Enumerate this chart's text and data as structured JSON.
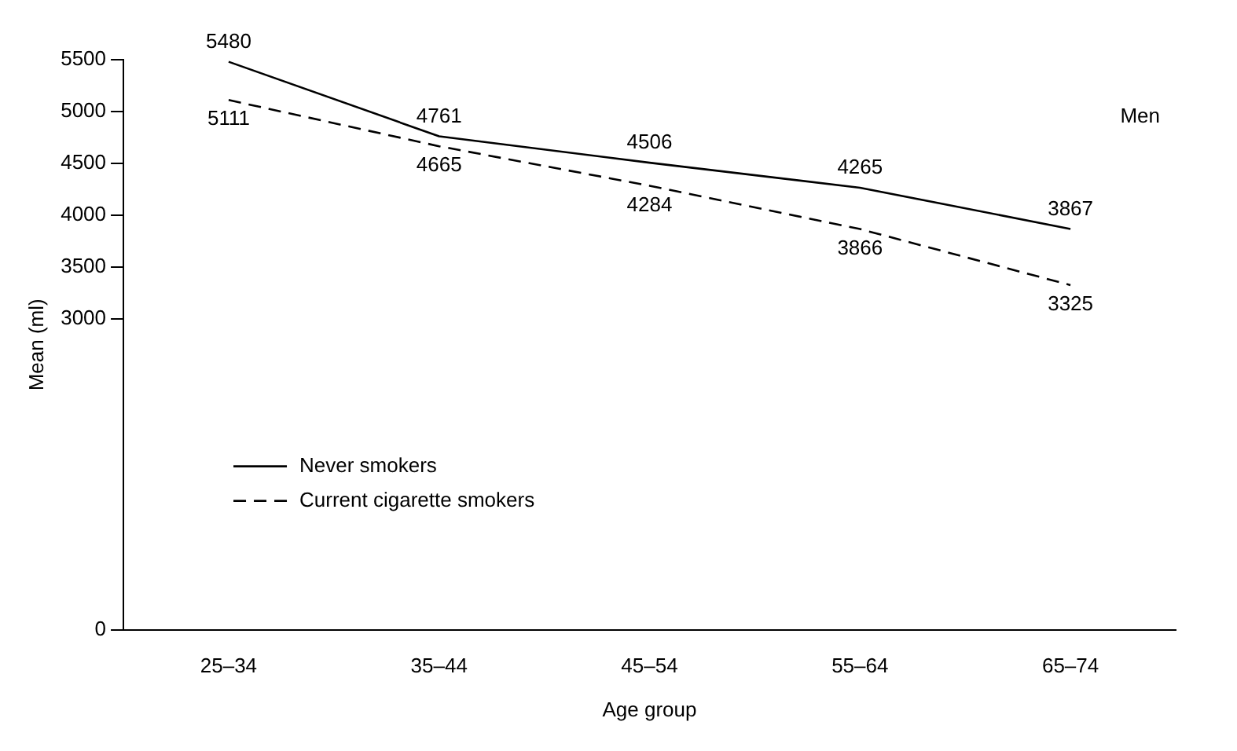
{
  "chart_data": {
    "type": "line",
    "xlabel": "Age group",
    "ylabel": "Mean (ml)",
    "annotations": [
      "Men"
    ],
    "categories": [
      "25–34",
      "35–44",
      "45–54",
      "55–64",
      "65–74"
    ],
    "series": [
      {
        "name": "Never smokers",
        "color": "#000000",
        "line_style": "solid",
        "values": [
          5480,
          4761,
          4506,
          4265,
          3867
        ]
      },
      {
        "name": "Current cigarette smokers",
        "color": "#000000",
        "line_style": "dashed",
        "values": [
          5111,
          4665,
          4284,
          3866,
          3325
        ]
      }
    ],
    "ylim": [
      0,
      5500
    ],
    "yticks": [
      0,
      3000,
      3500,
      4000,
      4500,
      5000,
      5500
    ],
    "grid": false,
    "legend": "bottom left",
    "marker": "none",
    "data_labels": true
  }
}
